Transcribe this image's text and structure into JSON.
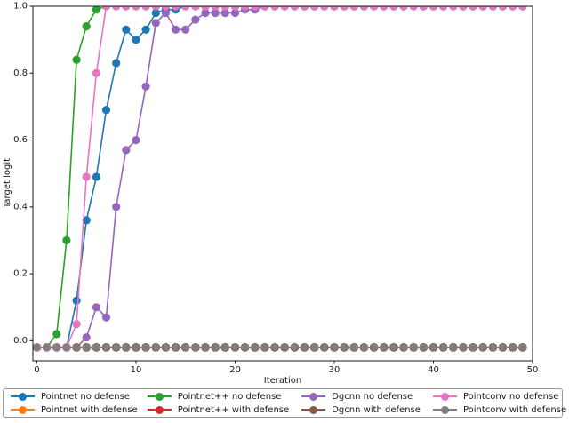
{
  "chart_data": {
    "type": "line",
    "title": "",
    "xlabel": "Iteration",
    "ylabel": "Target logit",
    "grid": false,
    "legend_position": "bottom",
    "legend_columns": 4,
    "xlim": [
      -0.4,
      50.0
    ],
    "ylim": [
      -0.06,
      1.0
    ],
    "xticks": [
      0,
      10,
      20,
      30,
      40,
      50
    ],
    "ytick_values": [
      0.0,
      0.2,
      0.4,
      0.6,
      0.8,
      1.0
    ],
    "ytick_labels": [
      "0.0",
      "0.2",
      "0.4",
      "0.6",
      "0.8",
      "1.0"
    ],
    "x": [
      0,
      1,
      2,
      3,
      4,
      5,
      6,
      7,
      8,
      9,
      10,
      11,
      12,
      13,
      14,
      15,
      16,
      17,
      18,
      19,
      20,
      21,
      22,
      23,
      24,
      25,
      26,
      27,
      28,
      29,
      30,
      31,
      32,
      33,
      34,
      35,
      36,
      37,
      38,
      39,
      40,
      41,
      42,
      43,
      44,
      45,
      46,
      47,
      48,
      49
    ],
    "series": [
      {
        "name": "Pointnet no defense",
        "color": "#1f77b4",
        "values": [
          -0.02,
          -0.02,
          -0.02,
          -0.02,
          0.12,
          0.36,
          0.49,
          0.69,
          0.83,
          0.93,
          0.9,
          0.93,
          0.98,
          0.99,
          0.99,
          1,
          1,
          1,
          1,
          1,
          1,
          1,
          1,
          1,
          1,
          1,
          1,
          1,
          1,
          1,
          1,
          1,
          1,
          1,
          1,
          1,
          1,
          1,
          1,
          1,
          1,
          1,
          1,
          1,
          1,
          1,
          1,
          1,
          1,
          1
        ]
      },
      {
        "name": "Pointnet with defense",
        "color": "#ff7f0e",
        "values": [
          -0.02,
          -0.02,
          -0.02,
          -0.02,
          -0.02,
          -0.02,
          -0.02,
          -0.02,
          -0.02,
          -0.02,
          -0.02,
          -0.02,
          -0.02,
          -0.02,
          -0.02,
          -0.02,
          -0.02,
          -0.02,
          -0.02,
          -0.02,
          -0.02,
          -0.02,
          -0.02,
          -0.02,
          -0.02,
          -0.02,
          -0.02,
          -0.02,
          -0.02,
          -0.02,
          -0.02,
          -0.02,
          -0.02,
          -0.02,
          -0.02,
          -0.02,
          -0.02,
          -0.02,
          -0.02,
          -0.02,
          -0.02,
          -0.02,
          -0.02,
          -0.02,
          -0.02,
          -0.02,
          -0.02,
          -0.02,
          -0.02,
          -0.02
        ]
      },
      {
        "name": "Pointnet++ no defense",
        "color": "#2ca02c",
        "values": [
          -0.02,
          -0.02,
          0.02,
          0.3,
          0.84,
          0.94,
          0.99,
          1,
          1,
          1,
          1,
          1,
          1,
          1,
          1,
          1,
          1,
          1,
          1,
          1,
          1,
          1,
          1,
          1,
          1,
          1,
          1,
          1,
          1,
          1,
          1,
          1,
          1,
          1,
          1,
          1,
          1,
          1,
          1,
          1,
          1,
          1,
          1,
          1,
          1,
          1,
          1,
          1,
          1,
          1
        ]
      },
      {
        "name": "Pointnet++ with defense",
        "color": "#d62728",
        "values": [
          -0.02,
          -0.02,
          -0.02,
          -0.02,
          -0.02,
          -0.02,
          -0.02,
          -0.02,
          -0.02,
          -0.02,
          -0.02,
          -0.02,
          -0.02,
          -0.02,
          -0.02,
          -0.02,
          -0.02,
          -0.02,
          -0.02,
          -0.02,
          -0.02,
          -0.02,
          -0.02,
          -0.02,
          -0.02,
          -0.02,
          -0.02,
          -0.02,
          -0.02,
          -0.02,
          -0.02,
          -0.02,
          -0.02,
          -0.02,
          -0.02,
          -0.02,
          -0.02,
          -0.02,
          -0.02,
          -0.02,
          -0.02,
          -0.02,
          -0.02,
          -0.02,
          -0.02,
          -0.02,
          -0.02,
          -0.02,
          -0.02,
          -0.02
        ]
      },
      {
        "name": "Dgcnn no defense",
        "color": "#9467bd",
        "values": [
          -0.02,
          -0.02,
          -0.02,
          -0.02,
          -0.02,
          0.01,
          0.1,
          0.07,
          0.4,
          0.57,
          0.6,
          0.76,
          0.95,
          0.98,
          0.93,
          0.93,
          0.96,
          0.98,
          0.98,
          0.98,
          0.98,
          0.99,
          0.99,
          1,
          1,
          1,
          1,
          1,
          1,
          1,
          1,
          1,
          1,
          1,
          1,
          1,
          1,
          1,
          1,
          1,
          1,
          1,
          1,
          1,
          1,
          1,
          1,
          1,
          1,
          1
        ]
      },
      {
        "name": "Dgcnn with defense",
        "color": "#8c564b",
        "values": [
          -0.02,
          -0.02,
          -0.02,
          -0.02,
          -0.02,
          -0.02,
          -0.02,
          -0.02,
          -0.02,
          -0.02,
          -0.02,
          -0.02,
          -0.02,
          -0.02,
          -0.02,
          -0.02,
          -0.02,
          -0.02,
          -0.02,
          -0.02,
          -0.02,
          -0.02,
          -0.02,
          -0.02,
          -0.02,
          -0.02,
          -0.02,
          -0.02,
          -0.02,
          -0.02,
          -0.02,
          -0.02,
          -0.02,
          -0.02,
          -0.02,
          -0.02,
          -0.02,
          -0.02,
          -0.02,
          -0.02,
          -0.02,
          -0.02,
          -0.02,
          -0.02,
          -0.02,
          -0.02,
          -0.02,
          -0.02,
          -0.02,
          -0.02
        ]
      },
      {
        "name": "Pointconv no defense",
        "color": "#e377c2",
        "values": [
          -0.02,
          -0.02,
          -0.02,
          -0.02,
          0.05,
          0.49,
          0.8,
          1,
          1,
          1,
          1,
          1,
          1,
          1,
          1,
          1,
          1,
          1,
          1,
          1,
          1,
          1,
          1,
          1,
          1,
          1,
          1,
          1,
          1,
          1,
          1,
          1,
          1,
          1,
          1,
          1,
          1,
          1,
          1,
          1,
          1,
          1,
          1,
          1,
          1,
          1,
          1,
          1,
          1,
          1
        ]
      },
      {
        "name": "Pointconv with defense",
        "color": "#7f7f7f",
        "values": [
          -0.02,
          -0.02,
          -0.02,
          -0.02,
          -0.02,
          -0.02,
          -0.02,
          -0.02,
          -0.02,
          -0.02,
          -0.02,
          -0.02,
          -0.02,
          -0.02,
          -0.02,
          -0.02,
          -0.02,
          -0.02,
          -0.02,
          -0.02,
          -0.02,
          -0.02,
          -0.02,
          -0.02,
          -0.02,
          -0.02,
          -0.02,
          -0.02,
          -0.02,
          -0.02,
          -0.02,
          -0.02,
          -0.02,
          -0.02,
          -0.02,
          -0.02,
          -0.02,
          -0.02,
          -0.02,
          -0.02,
          -0.02,
          -0.02,
          -0.02,
          -0.02,
          -0.02,
          -0.02,
          -0.02,
          -0.02,
          -0.02,
          -0.02
        ]
      }
    ],
    "colors": {
      "spine": "#1a1a1a",
      "background": "#ffffff"
    }
  }
}
